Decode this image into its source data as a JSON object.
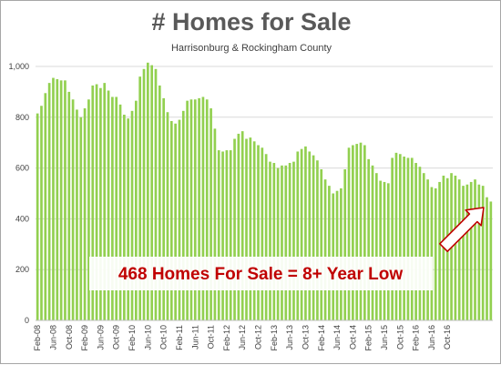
{
  "chart_data": {
    "type": "bar",
    "title": "# Homes for Sale",
    "subtitle": "Harrisonburg & Rockingham County",
    "xlabel": "",
    "ylabel": "",
    "ylim": [
      0,
      1000
    ],
    "yticks": [
      0,
      200,
      400,
      600,
      800,
      1000
    ],
    "ytick_labels": [
      "0",
      "200",
      "400",
      "600",
      "800",
      "1,000"
    ],
    "grid": true,
    "bar_color": "#92d050",
    "start": "Feb-08",
    "tick_labels": [
      "Feb-08",
      "Jun-08",
      "Oct-08",
      "Feb-09",
      "Jun-09",
      "Oct-09",
      "Feb-10",
      "Jun-10",
      "Oct-10",
      "Feb-11",
      "Jun-11",
      "Oct-11",
      "Feb-12",
      "Jun-12",
      "Oct-12",
      "Feb-13",
      "Jun-13",
      "Oct-13",
      "Feb-14",
      "Jun-14",
      "Oct-14",
      "Feb-15",
      "Jun-15",
      "Oct-15",
      "Feb-16",
      "Jun-16",
      "Oct-16"
    ],
    "values": [
      815,
      845,
      895,
      935,
      955,
      950,
      945,
      945,
      900,
      870,
      830,
      800,
      835,
      870,
      925,
      930,
      915,
      935,
      905,
      880,
      880,
      850,
      810,
      795,
      825,
      865,
      960,
      990,
      1015,
      1005,
      990,
      925,
      875,
      820,
      785,
      775,
      790,
      825,
      865,
      870,
      870,
      875,
      880,
      870,
      835,
      755,
      670,
      665,
      670,
      670,
      715,
      735,
      745,
      715,
      720,
      705,
      690,
      680,
      655,
      625,
      620,
      600,
      610,
      610,
      620,
      625,
      665,
      675,
      685,
      665,
      650,
      630,
      595,
      555,
      530,
      500,
      510,
      520,
      595,
      680,
      690,
      695,
      700,
      690,
      635,
      610,
      580,
      550,
      545,
      540,
      640,
      660,
      655,
      645,
      640,
      640,
      620,
      605,
      580,
      555,
      525,
      520,
      545,
      570,
      560,
      580,
      570,
      555,
      530,
      535,
      545,
      555,
      535,
      530,
      485,
      468
    ],
    "annotation": {
      "text": "468 Homes For Sale = 8+ Year Low",
      "color": "#c00000"
    }
  }
}
